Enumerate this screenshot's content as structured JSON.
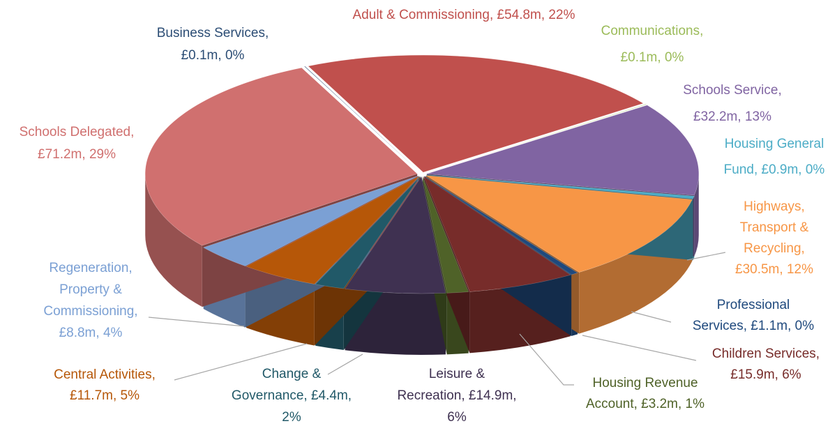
{
  "chart_data": {
    "type": "pie3d",
    "labels": [
      [
        "Adult & Commissioning, £54.8m, 22%"
      ],
      [
        "Communications,",
        "£0.1m, 0%"
      ],
      [
        "Schools Service,",
        "£32.2m, 13%"
      ],
      [
        "Housing General",
        "Fund, £0.9m, 0%"
      ],
      [
        "Highways,",
        "Transport &",
        "Recycling,",
        "£30.5m, 12%"
      ],
      [
        "Professional",
        "Services, £1.1m, 0%"
      ],
      [
        "Children Services,",
        "£15.9m, 6%"
      ],
      [
        "Housing Revenue",
        "Account, £3.2m, 1%"
      ],
      [
        "Leisure &",
        "Recreation, £14.9m,",
        "6%"
      ],
      [
        "Change &",
        "Governance, £4.4m,",
        "2%"
      ],
      [
        "Central Activities,",
        "£11.7m, 5%"
      ],
      [
        "Regeneration,",
        "Property &",
        "Commissioning,",
        "£8.8m, 4%"
      ],
      [
        "Schools Delegated,",
        "£71.2m, 29%"
      ],
      [
        "Business Services,",
        "£0.1m, 0%"
      ]
    ],
    "values": [
      54.8,
      0.1,
      32.2,
      0.9,
      30.5,
      1.1,
      15.9,
      3.2,
      14.9,
      4.4,
      11.7,
      8.8,
      71.2,
      0.1
    ],
    "colors": [
      "#c0504d",
      "#9bbb59",
      "#8064a2",
      "#4bacc6",
      "#f79646",
      "#1f497d",
      "#772c2a",
      "#4f6228",
      "#3f3151",
      "#215968",
      "#b65708",
      "#7ba0d4",
      "#d0706f",
      "#2c4d75"
    ]
  }
}
